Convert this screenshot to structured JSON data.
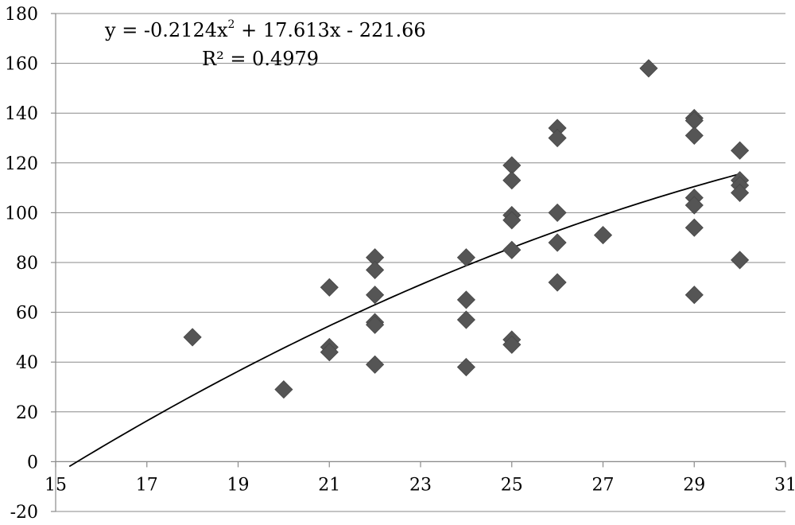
{
  "chart_data": {
    "type": "scatter",
    "title": "",
    "xlabel": "",
    "ylabel": "",
    "xlim": [
      15,
      31
    ],
    "ylim": [
      -20,
      180
    ],
    "xticks": [
      15,
      17,
      19,
      21,
      23,
      25,
      27,
      29,
      31
    ],
    "yticks": [
      -20,
      0,
      20,
      40,
      60,
      80,
      100,
      120,
      140,
      160,
      180
    ],
    "grid": "horizontal",
    "legend": "none",
    "marker_color": "#555555",
    "marker_shape": "diamond",
    "series": [
      {
        "points": [
          [
            18,
            50
          ],
          [
            20,
            29
          ],
          [
            21,
            70
          ],
          [
            21,
            46
          ],
          [
            21,
            44
          ],
          [
            22,
            82
          ],
          [
            22,
            77
          ],
          [
            22,
            67
          ],
          [
            22,
            56
          ],
          [
            22,
            55
          ],
          [
            22,
            39
          ],
          [
            24,
            82
          ],
          [
            24,
            65
          ],
          [
            24,
            57
          ],
          [
            24,
            38
          ],
          [
            25,
            119
          ],
          [
            25,
            113
          ],
          [
            25,
            99
          ],
          [
            25,
            97
          ],
          [
            25,
            85
          ],
          [
            25,
            49
          ],
          [
            25,
            47
          ],
          [
            26,
            134
          ],
          [
            26,
            130
          ],
          [
            26,
            100
          ],
          [
            26,
            88
          ],
          [
            26,
            72
          ],
          [
            27,
            91
          ],
          [
            28,
            158
          ],
          [
            29,
            138
          ],
          [
            29,
            137
          ],
          [
            29,
            131
          ],
          [
            29,
            106
          ],
          [
            29,
            103
          ],
          [
            29,
            94
          ],
          [
            29,
            67
          ],
          [
            30,
            125
          ],
          [
            30,
            113
          ],
          [
            30,
            111
          ],
          [
            30,
            108
          ],
          [
            30,
            81
          ]
        ]
      }
    ],
    "trendline": {
      "type": "polynomial",
      "coefficients": [
        -0.2124,
        17.613,
        -221.66
      ],
      "x_range": [
        15.3,
        30
      ],
      "equation_text": "y = -0.2124x",
      "equation_exponent": "2",
      "equation_text_rest": " + 17.613x - 221.66",
      "r2_text": "R² = 0.4979"
    }
  }
}
